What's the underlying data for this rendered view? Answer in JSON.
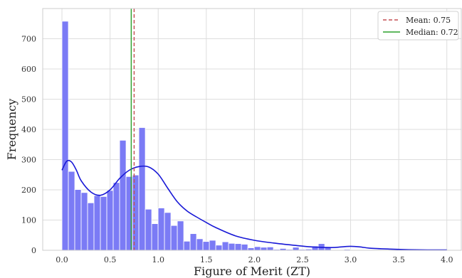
{
  "chart_data": {
    "type": "bar",
    "subtype": "histogram-with-kde",
    "title": "",
    "xlabel": "Figure of Merit (ZT)",
    "ylabel": "Frequency",
    "xlim": [
      -0.2,
      4.15
    ],
    "ylim": [
      0,
      800
    ],
    "grid": true,
    "legend_position": "top-right",
    "xticks": [
      0.0,
      0.5,
      1.0,
      1.5,
      2.0,
      2.5,
      3.0,
      3.5,
      4.0
    ],
    "xtick_labels": [
      "0.0",
      "0.5",
      "1.0",
      "1.5",
      "2.0",
      "2.5",
      "3.0",
      "3.5",
      "4.0"
    ],
    "yticks": [
      0,
      100,
      200,
      300,
      400,
      500,
      600,
      700
    ],
    "ytick_labels": [
      "0",
      "100",
      "200",
      "300",
      "400",
      "500",
      "600",
      "700"
    ],
    "bin_start": 0.0,
    "bin_width": 0.0666,
    "counts": [
      758,
      261,
      201,
      191,
      157,
      181,
      178,
      198,
      224,
      364,
      244,
      249,
      406,
      136,
      88,
      140,
      125,
      82,
      97,
      30,
      55,
      38,
      29,
      33,
      17,
      28,
      23,
      22,
      20,
      8,
      12,
      10,
      11,
      3,
      6,
      3,
      10,
      3,
      4,
      14,
      22,
      10,
      2,
      2,
      3,
      2,
      1,
      2,
      1,
      1,
      1,
      1,
      0,
      0,
      1,
      0,
      2,
      0,
      0,
      2
    ],
    "bar_color": "#7b7bf5",
    "kde": {
      "color": "#1818d6",
      "x": [
        0.0,
        0.05,
        0.1,
        0.15,
        0.2,
        0.3,
        0.4,
        0.5,
        0.6,
        0.7,
        0.8,
        0.9,
        1.0,
        1.1,
        1.2,
        1.3,
        1.4,
        1.5,
        1.6,
        1.8,
        2.0,
        2.2,
        2.4,
        2.6,
        2.8,
        2.9,
        3.0,
        3.1,
        3.2,
        3.4,
        3.6,
        3.8,
        4.0
      ],
      "y": [
        265,
        295,
        292,
        265,
        230,
        193,
        182,
        200,
        238,
        265,
        277,
        276,
        252,
        205,
        160,
        130,
        110,
        92,
        75,
        48,
        33,
        24,
        17,
        11,
        9,
        11,
        13,
        11,
        7,
        4,
        2,
        1,
        1
      ]
    },
    "lines": [
      {
        "label": "Mean: 0.75",
        "x": 0.75,
        "color": "#c44e52",
        "style": "dashed"
      },
      {
        "label": "Median: 0.72",
        "x": 0.72,
        "color": "#2ca02c",
        "style": "solid"
      }
    ]
  }
}
